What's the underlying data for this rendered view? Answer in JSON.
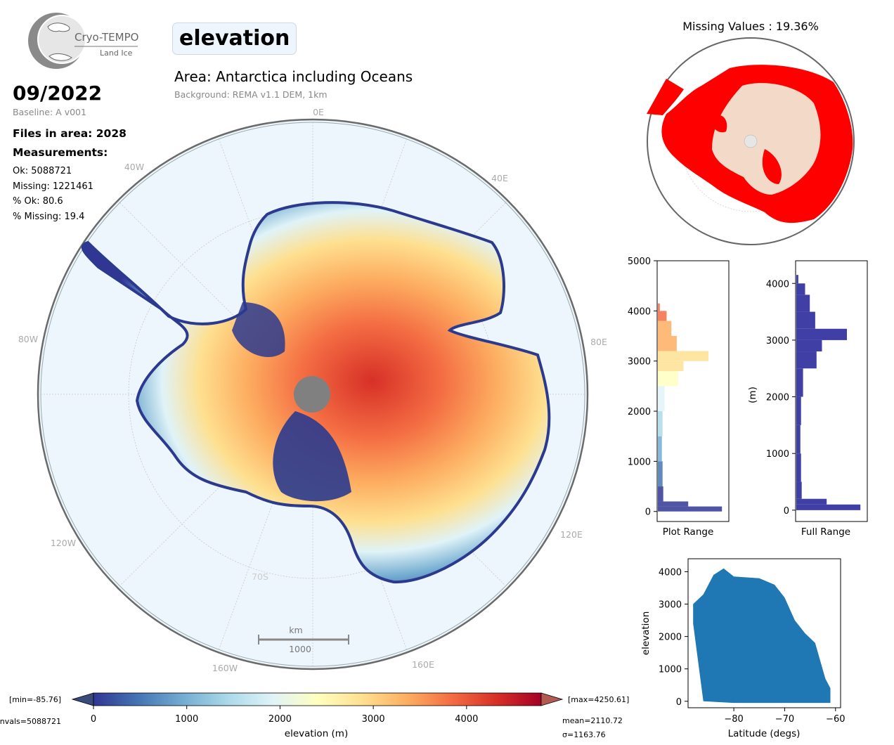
{
  "logo": {
    "name": "Cryo-TEMPO",
    "subtitle": "Land Ice"
  },
  "title": "elevation",
  "area": "Area: Antarctica including Oceans",
  "background": "Background: REMA v1.1 DEM, 1km",
  "date": "09/2022",
  "baseline": "Baseline: A v001",
  "files": "Files in area: 2028",
  "measurements_heading": "Measurements:",
  "measurements": [
    "Ok: 5088721",
    "Missing: 1221461",
    "% Ok: 80.6",
    "% Missing: 19.4"
  ],
  "map": {
    "longitude_labels": [
      "0E",
      "40E",
      "80E",
      "120E",
      "160E",
      "160W",
      "120W",
      "80W",
      "40W"
    ],
    "latitude_label": "70S",
    "scale_unit": "km",
    "scale_value": "1000",
    "colors": {
      "ocean": "#eef6fd",
      "pole_hole": "#808080",
      "land_dark": "#2b3a8e"
    }
  },
  "colorbar": {
    "label": "elevation (m)",
    "ticks": [
      "0",
      "1000",
      "2000",
      "3000",
      "4000"
    ],
    "range": [
      0,
      4800
    ],
    "min_text": "[min=-85.76]",
    "max_text": "[max=4250.61]",
    "nvals_text": "nvals=5088721",
    "mean_text": "mean=2110.72",
    "sigma_text": "σ=1163.76",
    "colormap": [
      "#313695",
      "#4575b4",
      "#74add1",
      "#abd9e9",
      "#e0f3f8",
      "#ffffbf",
      "#fee090",
      "#fdae61",
      "#f46d43",
      "#d73027",
      "#a50026"
    ]
  },
  "missing": {
    "title": "Missing Values : 19.36%",
    "colors": {
      "missing": "#ff0000",
      "ok": "#f2ecd8"
    }
  },
  "chart_data": [
    {
      "type": "bar",
      "orientation": "horizontal",
      "title": "",
      "xlabel": "Plot Range",
      "ylabel": "",
      "ylim": [
        -200,
        5000
      ],
      "yticks": [
        "0",
        "1000",
        "2000",
        "3000",
        "4000",
        "5000"
      ],
      "bins": [
        {
          "y": 0,
          "count": 0.95
        },
        {
          "y": 100,
          "count": 0.45
        },
        {
          "y": 200,
          "count": 0.08
        },
        {
          "y": 500,
          "count": 0.07
        },
        {
          "y": 1000,
          "count": 0.06
        },
        {
          "y": 1500,
          "count": 0.07
        },
        {
          "y": 2000,
          "count": 0.1
        },
        {
          "y": 2500,
          "count": 0.3
        },
        {
          "y": 2800,
          "count": 0.38
        },
        {
          "y": 3000,
          "count": 0.75
        },
        {
          "y": 3200,
          "count": 0.28
        },
        {
          "y": 3500,
          "count": 0.2
        },
        {
          "y": 3800,
          "count": 0.13
        },
        {
          "y": 4000,
          "count": 0.03
        }
      ]
    },
    {
      "type": "bar",
      "orientation": "horizontal",
      "title": "",
      "xlabel": "Full Range",
      "ylabel": "(m)",
      "ylim": [
        -200,
        4400
      ],
      "yticks": [
        "0",
        "1000",
        "2000",
        "3000",
        "4000"
      ],
      "bins": [
        {
          "y": 0,
          "count": 0.95
        },
        {
          "y": 100,
          "count": 0.45
        },
        {
          "y": 200,
          "count": 0.08
        },
        {
          "y": 500,
          "count": 0.07
        },
        {
          "y": 1000,
          "count": 0.06
        },
        {
          "y": 1500,
          "count": 0.07
        },
        {
          "y": 2000,
          "count": 0.1
        },
        {
          "y": 2500,
          "count": 0.3
        },
        {
          "y": 2800,
          "count": 0.38
        },
        {
          "y": 3000,
          "count": 0.75
        },
        {
          "y": 3200,
          "count": 0.28
        },
        {
          "y": 3500,
          "count": 0.2
        },
        {
          "y": 3800,
          "count": 0.13
        },
        {
          "y": 4000,
          "count": 0.03
        }
      ]
    },
    {
      "type": "scatter",
      "title": "",
      "xlabel": "Latitude (degs)",
      "ylabel": "elevation",
      "xlim": [
        -89,
        -59
      ],
      "ylim": [
        -200,
        4400
      ],
      "xticks": [
        "−80",
        "−70",
        "−60"
      ],
      "yticks": [
        "0",
        "1000",
        "2000",
        "3000",
        "4000"
      ],
      "envelope_upper": [
        [
          -88,
          3000
        ],
        [
          -86,
          3300
        ],
        [
          -84,
          3900
        ],
        [
          -82,
          4100
        ],
        [
          -80,
          3850
        ],
        [
          -75,
          3800
        ],
        [
          -72,
          3600
        ],
        [
          -70,
          3200
        ],
        [
          -68,
          2500
        ],
        [
          -66,
          2100
        ],
        [
          -64,
          1800
        ],
        [
          -62,
          700
        ],
        [
          -61,
          400
        ]
      ],
      "envelope_lower": [
        [
          -88,
          2400
        ],
        [
          -86,
          0
        ],
        [
          -80,
          -50
        ],
        [
          -70,
          -50
        ],
        [
          -61,
          -50
        ]
      ]
    }
  ]
}
